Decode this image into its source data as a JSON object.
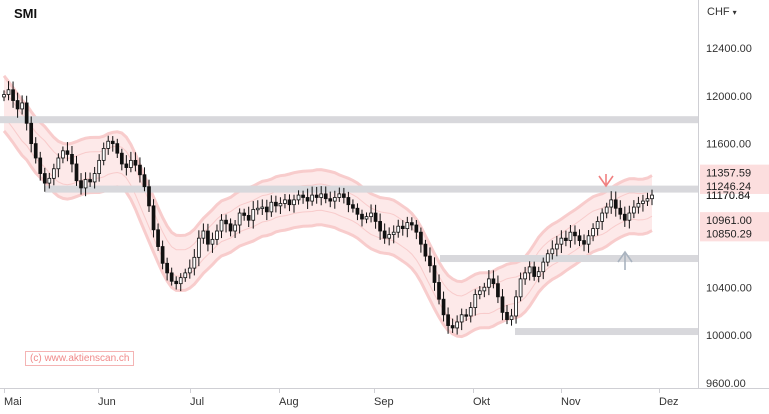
{
  "header": {
    "title": "SMI",
    "currency": "CHF"
  },
  "watermark": "(c) www.aktienscan.ch",
  "colors": {
    "up": "#ffffff",
    "down": "#111111",
    "band": "#f7c8c8",
    "band_fill": "#fde9e9",
    "level": "#d8d8dc",
    "price_tag": "#fcdede",
    "down_arrow": "#f08080",
    "up_arrow": "#a9b3bf"
  },
  "chart_data": {
    "type": "candlestick",
    "ylim": [
      9600,
      12800
    ],
    "y_ticks": [
      "12400.00",
      "12000.00",
      "11600.00",
      "11170.84",
      "10400.00",
      "10000.00",
      "9600.00"
    ],
    "x_labels": [
      "Mai",
      "Jun",
      "Jul",
      "Aug",
      "Sep",
      "Okt",
      "Nov",
      "Dez"
    ],
    "price_labels": [
      {
        "value": "11357.59",
        "highlight": true
      },
      {
        "value": "11246.24",
        "highlight": true
      },
      {
        "value": "11170.84",
        "highlight": false
      },
      {
        "value": "10961.00",
        "highlight": true
      },
      {
        "value": "10850.29",
        "highlight": true
      }
    ],
    "levels": [
      11800,
      11220,
      10640,
      10030
    ],
    "grid": false,
    "close": [
      12010,
      12050,
      11960,
      11890,
      11940,
      11770,
      11600,
      11480,
      11350,
      11270,
      11310,
      11390,
      11480,
      11540,
      11510,
      11430,
      11290,
      11230,
      11300,
      11280,
      11350,
      11460,
      11560,
      11620,
      11600,
      11520,
      11430,
      11400,
      11460,
      11420,
      11340,
      11240,
      11080,
      10880,
      10740,
      10600,
      10520,
      10450,
      10430,
      10480,
      10520,
      10560,
      10650,
      10810,
      10870,
      10760,
      10800,
      10870,
      10960,
      10930,
      10870,
      10920,
      11020,
      11000,
      10960,
      11050,
      11060,
      11070,
      11030,
      11110,
      11080,
      11100,
      11130,
      11090,
      11130,
      11170,
      11150,
      11120,
      11170,
      11150,
      11180,
      11140,
      11120,
      11150,
      11180,
      11150,
      11090,
      11060,
      11010,
      10970,
      10990,
      11020,
      10950,
      10870,
      10810,
      10840,
      10860,
      10910,
      10890,
      10940,
      10920,
      10860,
      10760,
      10660,
      10580,
      10440,
      10300,
      10170,
      10080,
      10060,
      10110,
      10170,
      10160,
      10230,
      10340,
      10370,
      10400,
      10470,
      10430,
      10320,
      10190,
      10130,
      10160,
      10320,
      10470,
      10520,
      10570,
      10490,
      10530,
      10610,
      10680,
      10720,
      10760,
      10810,
      10790,
      10860,
      10830,
      10790,
      10760,
      10830,
      10890,
      10950,
      11020,
      11070,
      11130,
      11060,
      11010,
      10960,
      11020,
      11070,
      11100,
      11120,
      11140,
      11170
    ]
  }
}
